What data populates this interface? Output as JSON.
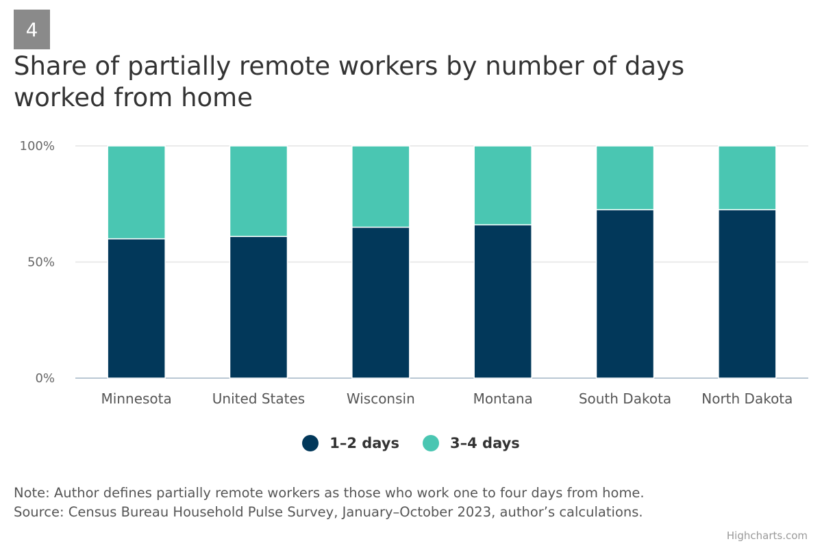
{
  "badge": "4",
  "title": "Share of partially remote workers by number of days worked from home",
  "note_line1": "Note: Author defines partially remote workers as those who work one to four days from home.",
  "note_line2": "Source: Census Bureau Household Pulse Survey, January–October 2023, author’s calculations.",
  "credits": "Highcharts.com",
  "chart_data": {
    "type": "bar",
    "stacked": true,
    "title": "Share of partially remote workers by number of days worked from home",
    "categories": [
      "Minnesota",
      "United States",
      "Wisconsin",
      "Montana",
      "South Dakota",
      "North Dakota"
    ],
    "series": [
      {
        "name": "1–2 days",
        "color": "#02385a",
        "values": [
          60,
          61,
          65,
          66,
          72.5,
          72.5
        ]
      },
      {
        "name": "3–4 days",
        "color": "#4ac6b2",
        "values": [
          40,
          39,
          35,
          34,
          27.5,
          27.5
        ]
      }
    ],
    "ylim": [
      0,
      100
    ],
    "yticks": [
      0,
      50,
      100
    ],
    "ytick_labels": [
      "0%",
      "50%",
      "100%"
    ],
    "grid": true,
    "legend": "bottom-center",
    "xlabel": "",
    "ylabel": ""
  }
}
